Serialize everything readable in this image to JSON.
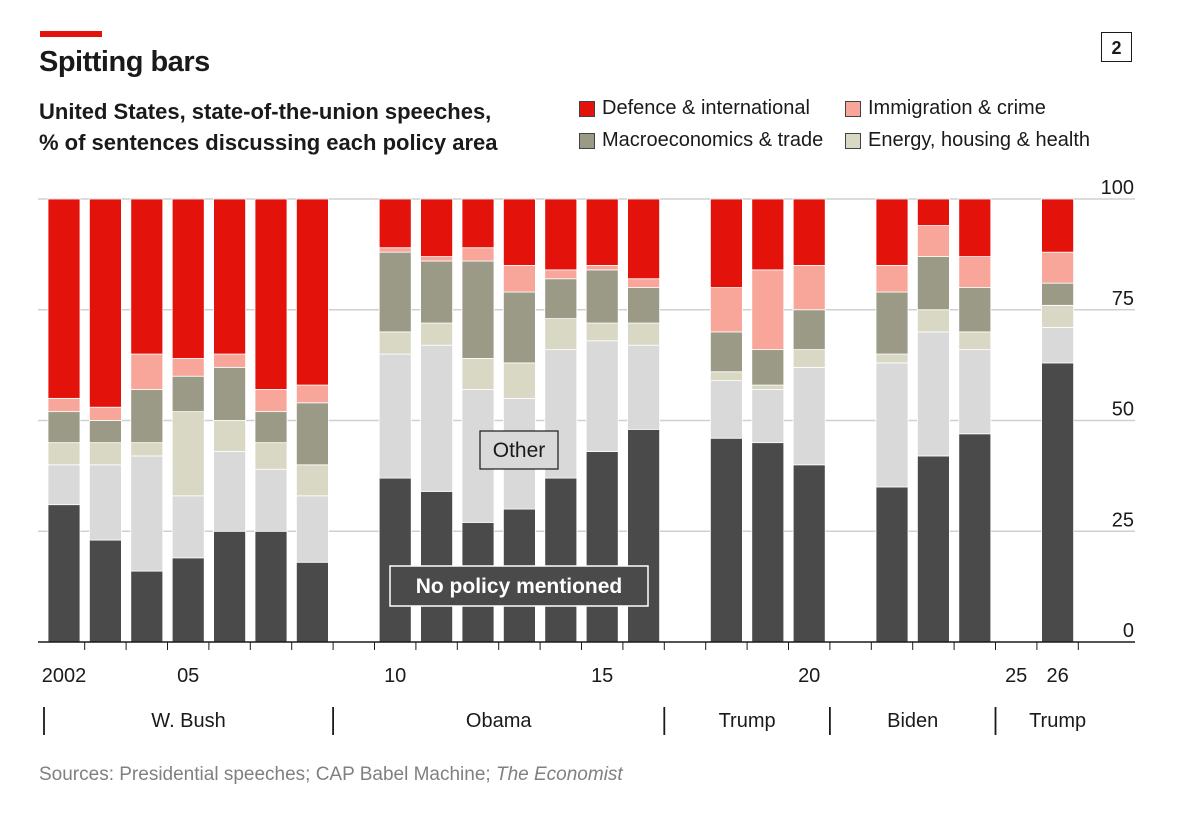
{
  "header": {
    "title": "Spitting bars",
    "subtitle_line1": "United States, state-of-the-union speeches,",
    "subtitle_line2": "% of sentences discussing each policy area",
    "badge": "2"
  },
  "source": {
    "prefix": "Sources: Presidential speeches; CAP Babel Machine; ",
    "publication": "The Economist"
  },
  "colors": {
    "none": "#4a4a4a",
    "other": "#d9d9d9",
    "energy": "#d9d8c4",
    "macro": "#9a9a86",
    "immig": "#f8a59a",
    "defence": "#e3120b"
  },
  "legend": [
    {
      "key": "defence",
      "label": "Defence & international"
    },
    {
      "key": "immig",
      "label": "Immigration & crime"
    },
    {
      "key": "macro",
      "label": "Macroeconomics & trade"
    },
    {
      "key": "energy",
      "label": "Energy, housing & health"
    }
  ],
  "chart_data": {
    "type": "bar",
    "stacked": true,
    "ylim": [
      0,
      100
    ],
    "yticks": [
      0,
      25,
      50,
      75,
      100
    ],
    "xlim": [
      2001.2,
      2027
    ],
    "xticks": [
      {
        "year": 2002,
        "label": "2002"
      },
      {
        "year": 2005,
        "label": "05"
      },
      {
        "year": 2010,
        "label": "10"
      },
      {
        "year": 2015,
        "label": "15"
      },
      {
        "year": 2020,
        "label": "20"
      },
      {
        "year": 2025,
        "label": "25"
      },
      {
        "year": 2026,
        "label": "26"
      }
    ],
    "stack_order": [
      "none",
      "other",
      "energy",
      "macro",
      "immig",
      "defence"
    ],
    "series_names": {
      "none": "No policy mentioned",
      "other": "Other",
      "energy": "Energy, housing & health",
      "macro": "Macroeconomics & trade",
      "immig": "Immigration & crime",
      "defence": "Defence & international"
    },
    "bars": [
      {
        "year": 2002,
        "none": 31,
        "other": 9,
        "energy": 5,
        "macro": 7,
        "immig": 3,
        "defence": 45
      },
      {
        "year": 2003,
        "none": 23,
        "other": 17,
        "energy": 5,
        "macro": 5,
        "immig": 3,
        "defence": 47
      },
      {
        "year": 2004,
        "none": 16,
        "other": 26,
        "energy": 3,
        "macro": 12,
        "immig": 8,
        "defence": 35
      },
      {
        "year": 2005,
        "none": 19,
        "other": 14,
        "energy": 19,
        "macro": 8,
        "immig": 4,
        "defence": 36
      },
      {
        "year": 2006,
        "none": 25,
        "other": 18,
        "energy": 7,
        "macro": 12,
        "immig": 3,
        "defence": 35
      },
      {
        "year": 2007,
        "none": 25,
        "other": 14,
        "energy": 6,
        "macro": 7,
        "immig": 5,
        "defence": 43
      },
      {
        "year": 2008,
        "none": 18,
        "other": 15,
        "energy": 7,
        "macro": 14,
        "immig": 4,
        "defence": 42
      },
      {
        "year": 2010,
        "none": 37,
        "other": 28,
        "energy": 5,
        "macro": 18,
        "immig": 1,
        "defence": 11
      },
      {
        "year": 2011,
        "none": 34,
        "other": 33,
        "energy": 5,
        "macro": 14,
        "immig": 1,
        "defence": 13
      },
      {
        "year": 2012,
        "none": 27,
        "other": 30,
        "energy": 7,
        "macro": 22,
        "immig": 3,
        "defence": 11
      },
      {
        "year": 2013,
        "none": 30,
        "other": 25,
        "energy": 8,
        "macro": 16,
        "immig": 6,
        "defence": 15
      },
      {
        "year": 2014,
        "none": 37,
        "other": 29,
        "energy": 7,
        "macro": 9,
        "immig": 2,
        "defence": 16
      },
      {
        "year": 2015,
        "none": 43,
        "other": 25,
        "energy": 4,
        "macro": 12,
        "immig": 1,
        "defence": 15
      },
      {
        "year": 2016,
        "none": 48,
        "other": 19,
        "energy": 5,
        "macro": 8,
        "immig": 2,
        "defence": 18
      },
      {
        "year": 2018,
        "none": 46,
        "other": 13,
        "energy": 2,
        "macro": 9,
        "immig": 10,
        "defence": 20
      },
      {
        "year": 2019,
        "none": 45,
        "other": 12,
        "energy": 1,
        "macro": 8,
        "immig": 18,
        "defence": 16
      },
      {
        "year": 2020,
        "none": 40,
        "other": 22,
        "energy": 4,
        "macro": 9,
        "immig": 10,
        "defence": 15
      },
      {
        "year": 2022,
        "none": 35,
        "other": 28,
        "energy": 2,
        "macro": 14,
        "immig": 6,
        "defence": 15
      },
      {
        "year": 2023,
        "none": 42,
        "other": 28,
        "energy": 5,
        "macro": 12,
        "immig": 7,
        "defence": 6
      },
      {
        "year": 2024,
        "none": 47,
        "other": 19,
        "energy": 4,
        "macro": 10,
        "immig": 7,
        "defence": 13
      },
      {
        "year": 2026,
        "none": 63,
        "other": 8,
        "energy": 5,
        "macro": 5,
        "immig": 7,
        "defence": 12
      }
    ],
    "annotations": [
      {
        "text": "Other",
        "series": "other"
      },
      {
        "text": "No policy mentioned",
        "series": "none"
      }
    ],
    "presidents": [
      {
        "name": "W. Bush",
        "from": 2001.5,
        "to": 2009
      },
      {
        "name": "Obama",
        "from": 2009,
        "to": 2017
      },
      {
        "name": "Trump",
        "from": 2017,
        "to": 2021
      },
      {
        "name": "Biden",
        "from": 2021,
        "to": 2025
      },
      {
        "name": "Trump",
        "from": 2025,
        "to": 2027
      }
    ]
  }
}
